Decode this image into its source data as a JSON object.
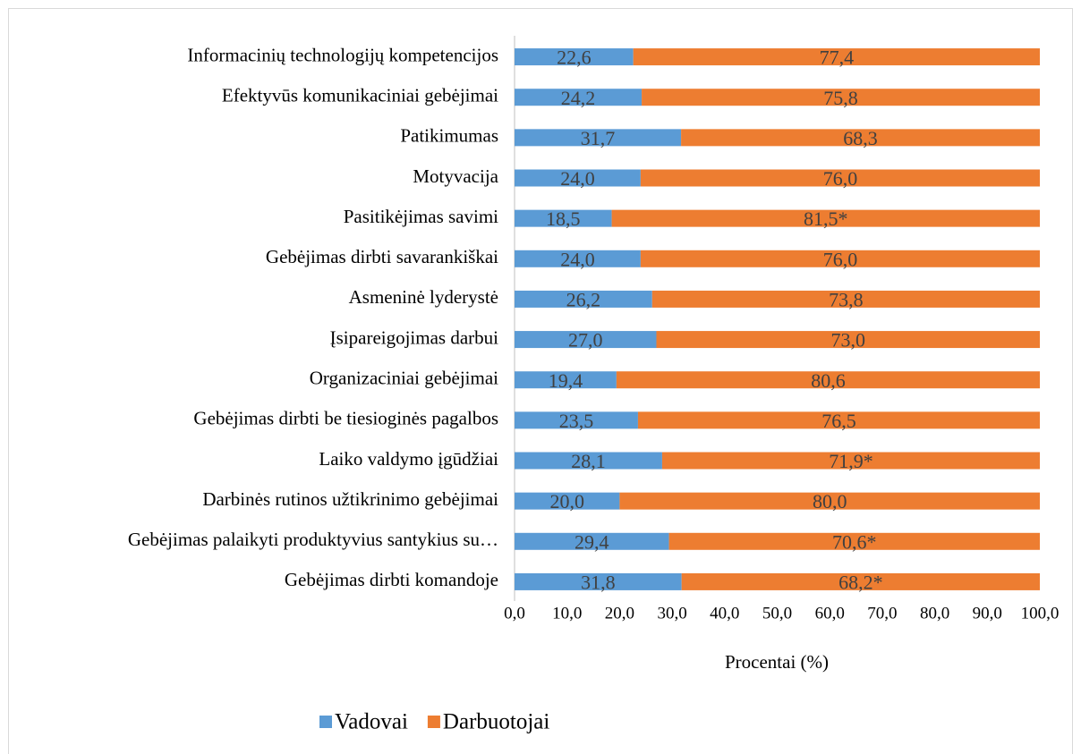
{
  "chart_data": {
    "type": "stacked_bar",
    "orientation": "horizontal",
    "categories": [
      "Informacinių technologijų kompetencijos",
      "Efektyvūs komunikaciniai gebėjimai",
      "Patikimumas",
      "Motyvacija",
      "Pasitikėjimas savimi",
      "Gebėjimas dirbti savarankiškai",
      "Asmeninė lyderystė",
      "Įsipareigojimas darbui",
      "Organizaciniai gebėjimai",
      "Gebėjimas dirbti be tiesioginės pagalbos",
      "Laiko valdymo įgūdžiai",
      "Darbinės rutinos užtikrinimo gebėjimai",
      "Gebėjimas palaikyti produktyvius santykius su…",
      "Gebėjimas dirbti komandoje"
    ],
    "series": [
      {
        "name": "Vadovai",
        "color": "#5b9bd5",
        "values": [
          22.6,
          24.2,
          31.7,
          24.0,
          18.5,
          24.0,
          26.2,
          27.0,
          19.4,
          23.5,
          28.1,
          20.0,
          29.4,
          31.8
        ],
        "value_labels": [
          "22,6",
          "24,2",
          "31,7",
          "24,0",
          "18,5",
          "24,0",
          "26,2",
          "27,0",
          "19,4",
          "23,5",
          "28,1",
          "20,0",
          "29,4",
          "31,8"
        ]
      },
      {
        "name": "Darbuotojai",
        "color": "#ed7d31",
        "values": [
          77.4,
          75.8,
          68.3,
          76.0,
          81.5,
          76.0,
          73.8,
          73.0,
          80.6,
          76.5,
          71.9,
          80.0,
          70.6,
          68.2
        ],
        "value_labels": [
          "77,4",
          "75,8",
          "68,3",
          "76,0",
          "81,5*",
          "76,0",
          "73,8",
          "73,0",
          "80,6",
          "76,5",
          "71,9*",
          "80,0",
          "70,6*",
          "68,2*"
        ]
      }
    ],
    "xlabel": "Procentai (%)",
    "xlim": [
      0,
      100
    ],
    "xticks": [
      {
        "value": 0,
        "label": "0,0"
      },
      {
        "value": 10,
        "label": "10,0"
      },
      {
        "value": 20,
        "label": "20,0"
      },
      {
        "value": 30,
        "label": "30,0"
      },
      {
        "value": 40,
        "label": "40,0"
      },
      {
        "value": 50,
        "label": "50,0"
      },
      {
        "value": 60,
        "label": "60,0"
      },
      {
        "value": 70,
        "label": "70,0"
      },
      {
        "value": 80,
        "label": "80,0"
      },
      {
        "value": 90,
        "label": "90,0"
      },
      {
        "value": 100,
        "label": "100,0"
      }
    ],
    "legend": "bottom"
  }
}
